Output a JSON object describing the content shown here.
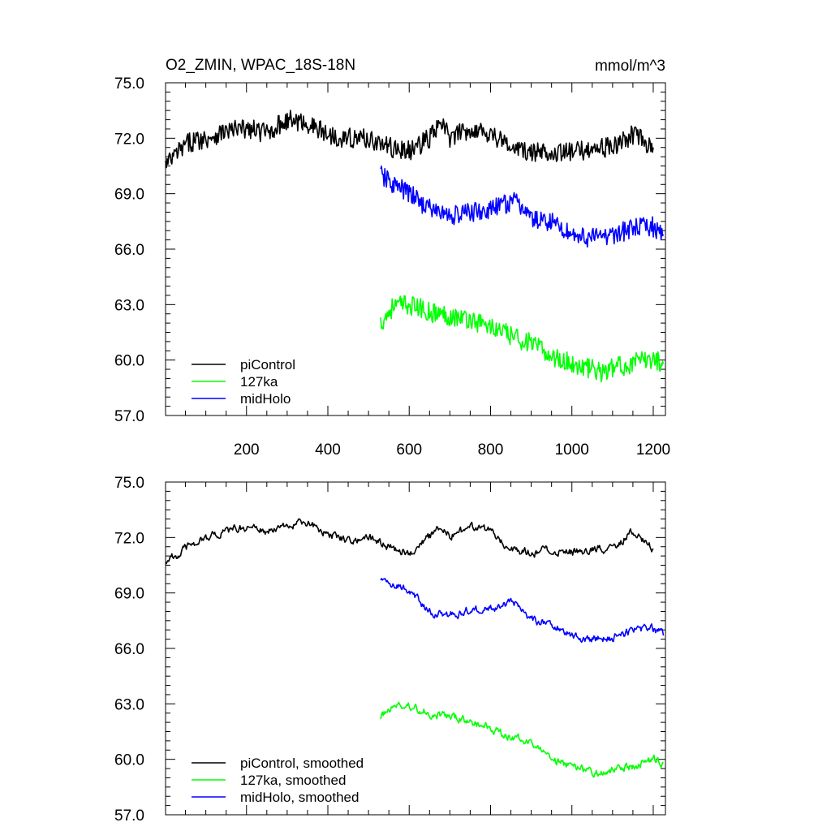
{
  "chart_data": [
    {
      "type": "line",
      "title": "O2_ZMIN, WPAC_18S-18N",
      "units": "mmol/m^3",
      "xlim": [
        1,
        1230
      ],
      "ylim": [
        57.0,
        75.0
      ],
      "x_ticks": [
        200,
        400,
        600,
        800,
        1000,
        1200
      ],
      "y_ticks": [
        "57.0",
        "60.0",
        "63.0",
        "66.0",
        "69.0",
        "72.0",
        "75.0"
      ],
      "legend_position": "bottom-left",
      "series": [
        {
          "name": "piControl",
          "color": "#000000",
          "points": [
            [
              1,
              70.5
            ],
            [
              30,
              71.2
            ],
            [
              60,
              71.8
            ],
            [
              100,
              72.0
            ],
            [
              150,
              72.4
            ],
            [
              200,
              72.5
            ],
            [
              250,
              72.3
            ],
            [
              300,
              73.0
            ],
            [
              350,
              72.8
            ],
            [
              400,
              72.2
            ],
            [
              450,
              72.0
            ],
            [
              500,
              72.0
            ],
            [
              550,
              71.5
            ],
            [
              600,
              71.3
            ],
            [
              650,
              72.0
            ],
            [
              680,
              72.8
            ],
            [
              700,
              72.0
            ],
            [
              750,
              72.5
            ],
            [
              800,
              72.3
            ],
            [
              850,
              71.5
            ],
            [
              900,
              71.2
            ],
            [
              950,
              71.3
            ],
            [
              1000,
              71.2
            ],
            [
              1050,
              71.5
            ],
            [
              1100,
              71.5
            ],
            [
              1150,
              72.2
            ],
            [
              1200,
              71.5
            ]
          ]
        },
        {
          "name": "127ka",
          "color": "#00ff00",
          "points": [
            [
              530,
              62.0
            ],
            [
              560,
              62.9
            ],
            [
              600,
              63.0
            ],
            [
              650,
              62.6
            ],
            [
              700,
              62.4
            ],
            [
              750,
              62.2
            ],
            [
              800,
              61.8
            ],
            [
              850,
              61.3
            ],
            [
              900,
              60.9
            ],
            [
              950,
              60.2
            ],
            [
              1000,
              59.8
            ],
            [
              1050,
              59.5
            ],
            [
              1080,
              59.3
            ],
            [
              1100,
              59.6
            ],
            [
              1150,
              59.8
            ],
            [
              1200,
              60.1
            ],
            [
              1225,
              59.8
            ]
          ]
        },
        {
          "name": "midHolo",
          "color": "#0000ff",
          "points": [
            [
              530,
              70.0
            ],
            [
              560,
              69.5
            ],
            [
              600,
              69.0
            ],
            [
              650,
              68.2
            ],
            [
              700,
              67.8
            ],
            [
              750,
              68.0
            ],
            [
              800,
              68.1
            ],
            [
              850,
              68.6
            ],
            [
              880,
              68.3
            ],
            [
              900,
              67.6
            ],
            [
              950,
              67.5
            ],
            [
              1000,
              66.8
            ],
            [
              1050,
              66.6
            ],
            [
              1100,
              66.8
            ],
            [
              1150,
              67.1
            ],
            [
              1200,
              67.2
            ],
            [
              1225,
              66.8
            ]
          ]
        }
      ]
    },
    {
      "type": "line",
      "xlim": [
        1,
        1230
      ],
      "ylim": [
        57.0,
        75.0
      ],
      "x_ticks": [
        200,
        400,
        600,
        800,
        1000,
        1200
      ],
      "y_ticks": [
        "57.0",
        "60.0",
        "63.0",
        "66.0",
        "69.0",
        "72.0",
        "75.0"
      ],
      "legend_position": "bottom-left",
      "series": [
        {
          "name": "piControl, smoothed",
          "color": "#000000",
          "points": [
            [
              1,
              70.8
            ],
            [
              30,
              71.0
            ],
            [
              60,
              71.6
            ],
            [
              100,
              72.0
            ],
            [
              150,
              72.3
            ],
            [
              200,
              72.6
            ],
            [
              250,
              72.3
            ],
            [
              300,
              72.6
            ],
            [
              350,
              72.8
            ],
            [
              400,
              72.2
            ],
            [
              450,
              71.9
            ],
            [
              500,
              72.0
            ],
            [
              550,
              71.5
            ],
            [
              600,
              71.2
            ],
            [
              650,
              72.0
            ],
            [
              680,
              72.6
            ],
            [
              700,
              72.1
            ],
            [
              750,
              72.5
            ],
            [
              800,
              72.4
            ],
            [
              850,
              71.4
            ],
            [
              900,
              71.2
            ],
            [
              950,
              71.3
            ],
            [
              1000,
              71.2
            ],
            [
              1050,
              71.3
            ],
            [
              1100,
              71.5
            ],
            [
              1150,
              72.3
            ],
            [
              1200,
              71.4
            ]
          ]
        },
        {
          "name": "127ka, smoothed",
          "color": "#00ff00",
          "points": [
            [
              530,
              62.3
            ],
            [
              560,
              62.9
            ],
            [
              600,
              62.9
            ],
            [
              650,
              62.5
            ],
            [
              700,
              62.3
            ],
            [
              750,
              62.0
            ],
            [
              800,
              61.7
            ],
            [
              850,
              61.2
            ],
            [
              900,
              60.9
            ],
            [
              950,
              60.0
            ],
            [
              1000,
              59.6
            ],
            [
              1050,
              59.3
            ],
            [
              1080,
              59.2
            ],
            [
              1100,
              59.5
            ],
            [
              1150,
              59.6
            ],
            [
              1200,
              60.0
            ],
            [
              1225,
              59.8
            ]
          ]
        },
        {
          "name": "midHolo, smoothed",
          "color": "#0000ff",
          "points": [
            [
              530,
              69.8
            ],
            [
              560,
              69.5
            ],
            [
              600,
              69.1
            ],
            [
              650,
              68.0
            ],
            [
              700,
              67.8
            ],
            [
              750,
              68.1
            ],
            [
              800,
              68.2
            ],
            [
              850,
              68.5
            ],
            [
              880,
              68.2
            ],
            [
              900,
              67.5
            ],
            [
              950,
              67.4
            ],
            [
              1000,
              66.7
            ],
            [
              1050,
              66.5
            ],
            [
              1100,
              66.6
            ],
            [
              1150,
              67.0
            ],
            [
              1200,
              67.1
            ],
            [
              1225,
              66.7
            ]
          ]
        }
      ]
    }
  ]
}
